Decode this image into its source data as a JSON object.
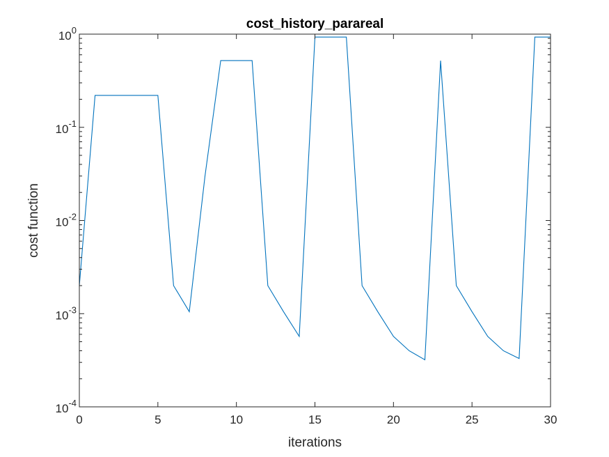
{
  "chart_data": {
    "type": "line",
    "title": "cost_history_parareal",
    "xlabel": "iterations",
    "ylabel": "cost function",
    "xlim": [
      0,
      30
    ],
    "ylim": [
      0.0001,
      1
    ],
    "yscale": "log",
    "grid": false,
    "x_ticks": [
      0,
      5,
      10,
      15,
      20,
      25,
      30
    ],
    "x_tick_labels": [
      "0",
      "5",
      "10",
      "15",
      "20",
      "25",
      "30"
    ],
    "y_ticks": [
      0.0001,
      0.001,
      0.01,
      0.1,
      1
    ],
    "y_tick_labels": [
      {
        "base": "10",
        "exp": "-4"
      },
      {
        "base": "10",
        "exp": "-3"
      },
      {
        "base": "10",
        "exp": "-2"
      },
      {
        "base": "10",
        "exp": "-1"
      },
      {
        "base": "10",
        "exp": "0"
      }
    ],
    "series": [
      {
        "color": "#0072BD",
        "x": [
          0,
          1,
          2,
          3,
          4,
          5,
          6,
          7,
          8,
          9,
          10,
          11,
          12,
          13,
          14,
          15,
          16,
          17,
          18,
          19,
          20,
          21,
          22,
          23,
          24,
          25,
          26,
          27,
          28,
          29,
          30
        ],
        "y": [
          0.002,
          0.22,
          0.22,
          0.22,
          0.22,
          0.22,
          0.002,
          0.00105,
          0.03,
          0.52,
          0.52,
          0.52,
          0.002,
          0.00105,
          0.00057,
          0.93,
          0.93,
          0.93,
          0.002,
          0.00105,
          0.00057,
          0.0004,
          0.00032,
          0.52,
          0.002,
          0.00105,
          0.00057,
          0.0004,
          0.00033,
          0.93,
          0.93
        ]
      }
    ]
  }
}
